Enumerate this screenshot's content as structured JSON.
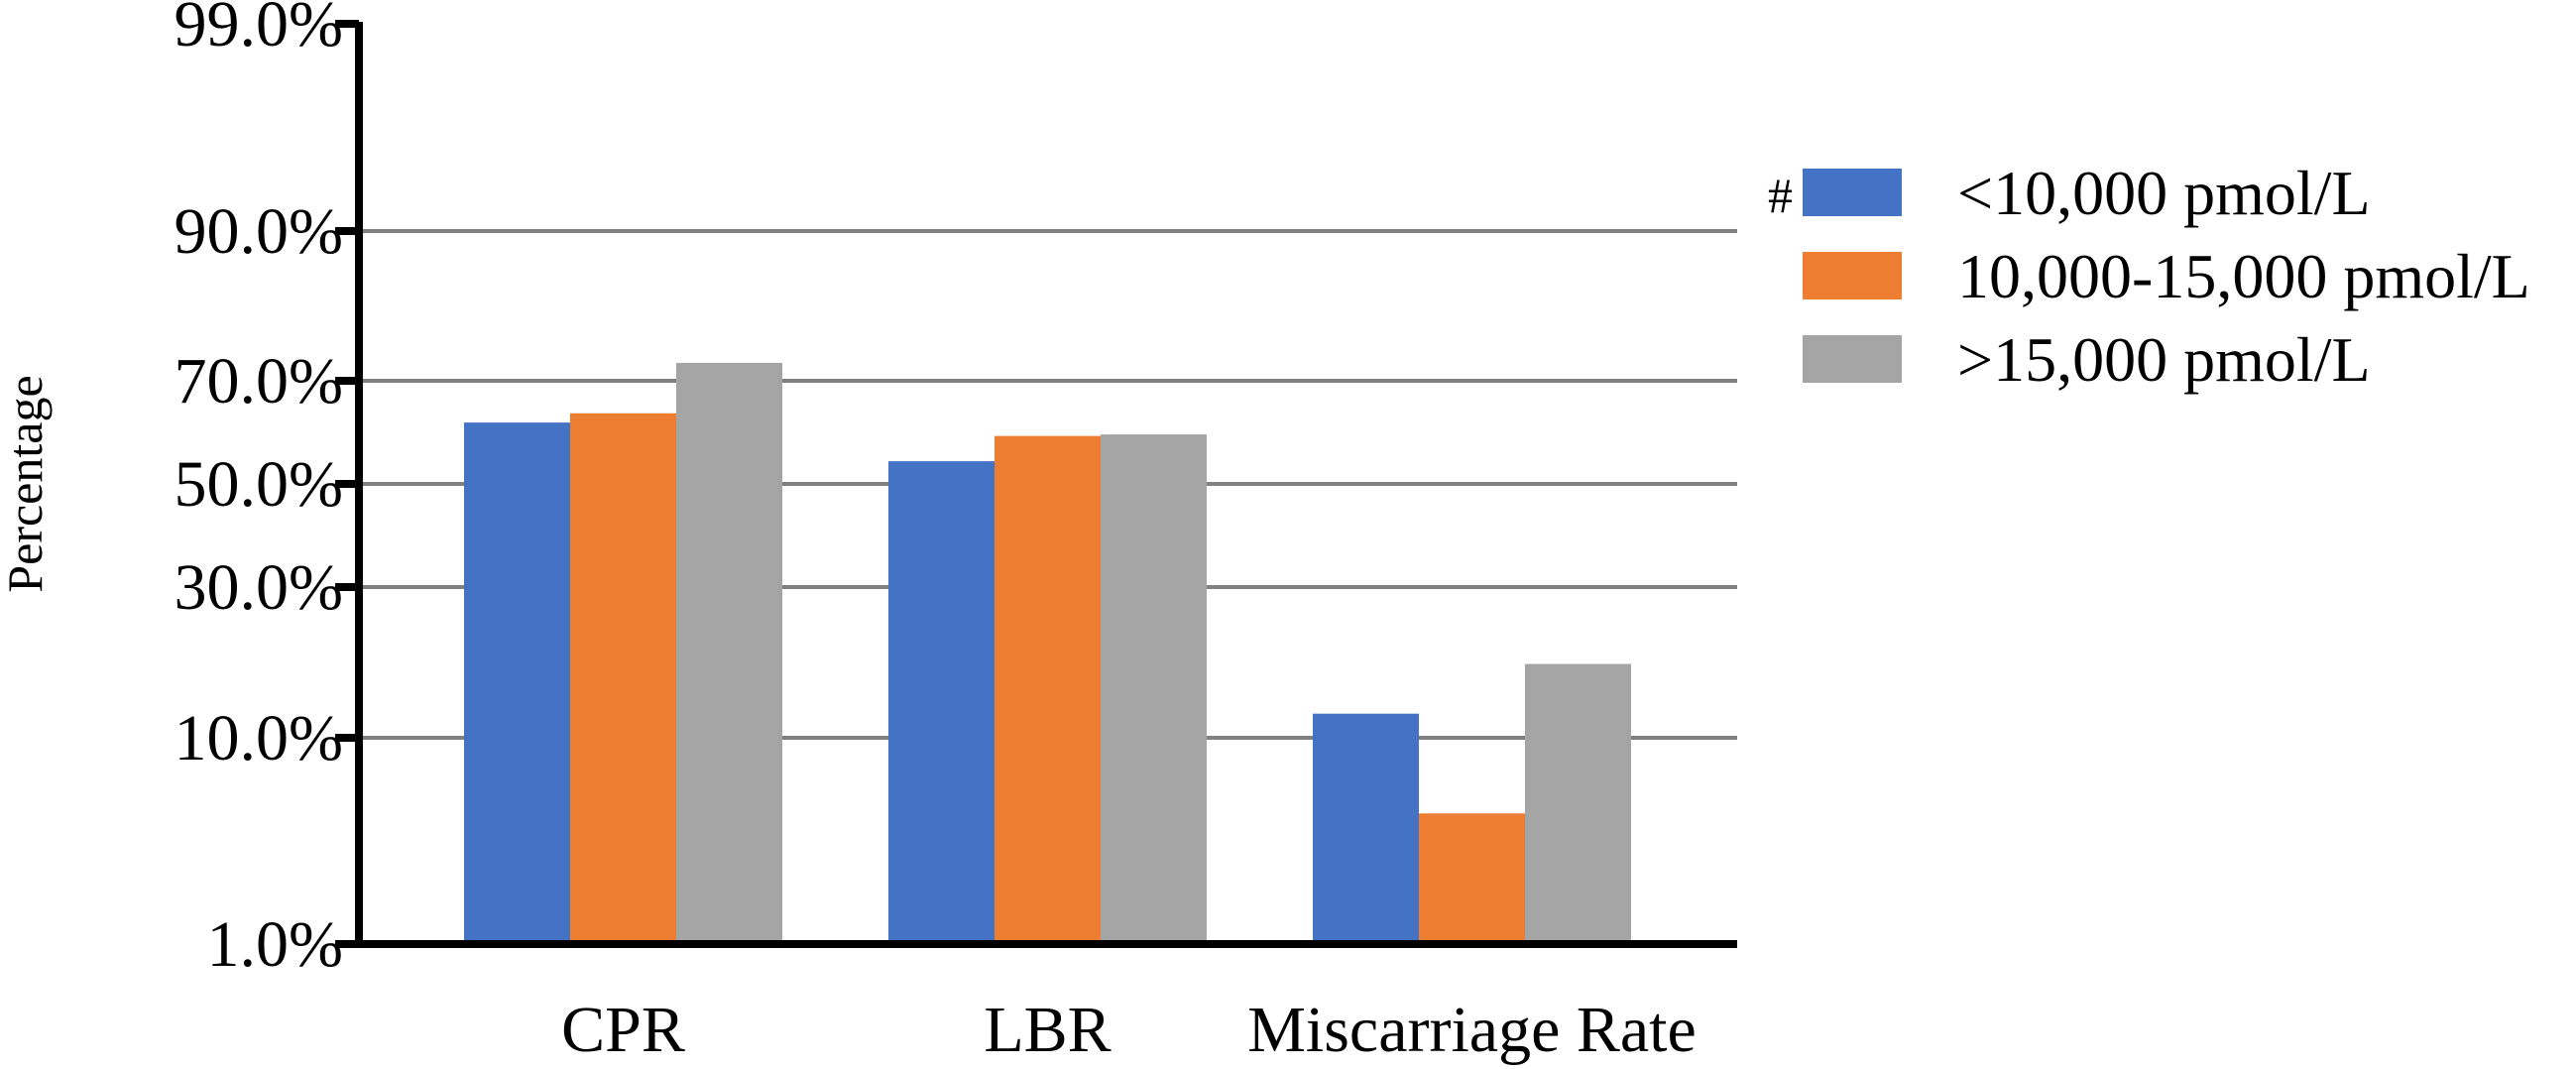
{
  "chart_data": {
    "type": "bar",
    "ylabel": "Percentage",
    "xlabel": "",
    "yscale": "transformed (irregularly spaced ticks)",
    "ylim": [
      1.0,
      99.0
    ],
    "ytick_labels": [
      "99.0%",
      "90.0%",
      "70.0%",
      "50.0%",
      "30.0%",
      "10.0%",
      "1.0%"
    ],
    "ytick_values": [
      99,
      90,
      70,
      50,
      30,
      10,
      1
    ],
    "grid": "horizontal gridlines at 90%, 70%, 50%, 30%, 10%",
    "categories": [
      "CPR",
      "LBR",
      "Miscarriage Rate"
    ],
    "series": [
      {
        "name": "<10,000 pmol/L",
        "color": "#4472C4",
        "values": [
          61.9,
          54.4,
          13.2
        ]
      },
      {
        "name": "10,000-15,000 pmol/L",
        "color": "#ED7D31",
        "values": [
          63.7,
          59.3,
          6.7
        ]
      },
      {
        "name": ">15,000 pmol/L",
        "color": "#A5A5A5",
        "values": [
          72.4,
          59.6,
          19.8
        ]
      }
    ],
    "legend_position": "right",
    "annotations": [
      "#"
    ]
  }
}
